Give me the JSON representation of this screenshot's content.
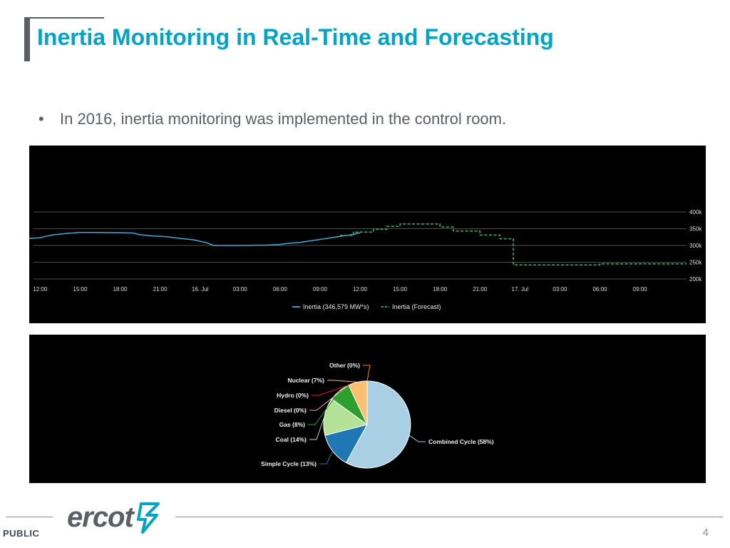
{
  "slide": {
    "title": "Inertia Monitoring in Real-Time and Forecasting",
    "bullet": "In 2016, inertia monitoring was implemented in the control room.",
    "footer_label": "PUBLIC",
    "page_number": "4",
    "logo_text": "ercot",
    "accent_color": "#00a4c7"
  },
  "chart_data": [
    {
      "type": "line",
      "y_axis_position": "right",
      "ylim": [
        200000,
        400000
      ],
      "yticks": [
        {
          "value": 200000,
          "label": "200k"
        },
        {
          "value": 250000,
          "label": "250k"
        },
        {
          "value": 300000,
          "label": "300k"
        },
        {
          "value": 350000,
          "label": "350k"
        },
        {
          "value": 400000,
          "label": "400k"
        }
      ],
      "x_range_hours": [
        -0.5,
        48.5
      ],
      "xticks": [
        {
          "hour": 0,
          "label": "12:00"
        },
        {
          "hour": 3,
          "label": "15:00"
        },
        {
          "hour": 6,
          "label": "18:00"
        },
        {
          "hour": 9,
          "label": "21:00"
        },
        {
          "hour": 12,
          "label": "16. Jul"
        },
        {
          "hour": 15,
          "label": "03:00"
        },
        {
          "hour": 18,
          "label": "06:00"
        },
        {
          "hour": 21,
          "label": "09:00"
        },
        {
          "hour": 24,
          "label": "12:00"
        },
        {
          "hour": 27,
          "label": "15:00"
        },
        {
          "hour": 30,
          "label": "18:00"
        },
        {
          "hour": 33,
          "label": "21:00"
        },
        {
          "hour": 36,
          "label": "17. Jul"
        },
        {
          "hour": 39,
          "label": "03:00"
        },
        {
          "hour": 42,
          "label": "06:00"
        },
        {
          "hour": 45,
          "label": "09:00"
        }
      ],
      "grid": true,
      "legend_position": "bottom",
      "series": [
        {
          "name": "Inertia (346,579 MW*s)",
          "style": "solid",
          "color": "#41a9d6",
          "points": [
            [
              -0.9,
              321000
            ],
            [
              0,
              323000
            ],
            [
              0.5,
              328000
            ],
            [
              1,
              332000
            ],
            [
              2,
              336000
            ],
            [
              3,
              339000
            ],
            [
              4,
              339000
            ],
            [
              6,
              338000
            ],
            [
              7,
              337000
            ],
            [
              7.5,
              332000
            ],
            [
              8.5,
              328000
            ],
            [
              9.5,
              326000
            ],
            [
              10.5,
              321000
            ],
            [
              11.5,
              317000
            ],
            [
              12.5,
              308000
            ],
            [
              13,
              300000
            ],
            [
              15,
              300000
            ],
            [
              17,
              301000
            ],
            [
              18,
              303000
            ],
            [
              18.5,
              306000
            ],
            [
              19.5,
              309000
            ],
            [
              20.5,
              315000
            ],
            [
              21.5,
              321000
            ],
            [
              22.5,
              327000
            ],
            [
              23.5,
              333000
            ],
            [
              24,
              338000
            ]
          ]
        },
        {
          "name": "Inertia (Forecast)",
          "style": "dashed",
          "color": "#2db87a",
          "points": [
            [
              22.5,
              330000
            ],
            [
              23.5,
              330000
            ],
            [
              23.5,
              340000
            ],
            [
              25,
              340000
            ],
            [
              25,
              348000
            ],
            [
              26,
              348000
            ],
            [
              26,
              357000
            ],
            [
              27,
              357000
            ],
            [
              27,
              364000
            ],
            [
              30,
              364000
            ],
            [
              30,
              355000
            ],
            [
              31,
              355000
            ],
            [
              31,
              343000
            ],
            [
              33,
              343000
            ],
            [
              33,
              331000
            ],
            [
              34.5,
              331000
            ],
            [
              34.5,
              320000
            ],
            [
              35.5,
              320000
            ],
            [
              35.5,
              242000
            ],
            [
              42,
              242000
            ],
            [
              42,
              245000
            ],
            [
              48.5,
              245000
            ]
          ]
        }
      ]
    },
    {
      "type": "pie",
      "slices": [
        {
          "label": "Combined Cycle (58%)",
          "value": 58,
          "color": "#a8cfe3"
        },
        {
          "label": "Simple Cycle (13%)",
          "value": 13,
          "color": "#1f77b4"
        },
        {
          "label": "Coal (14%)",
          "value": 14,
          "color": "#b3e297"
        },
        {
          "label": "Gas (8%)",
          "value": 8,
          "color": "#2ca02c"
        },
        {
          "label": "Diesel (0%)",
          "value": 0,
          "color": "#f2a7a0"
        },
        {
          "label": "Hydro (0%)",
          "value": 0,
          "color": "#d62728"
        },
        {
          "label": "Nuclear (7%)",
          "value": 7,
          "color": "#fdbf6f"
        },
        {
          "label": "Other (0%)",
          "value": 0,
          "color": "#ff7f0e"
        }
      ]
    }
  ]
}
